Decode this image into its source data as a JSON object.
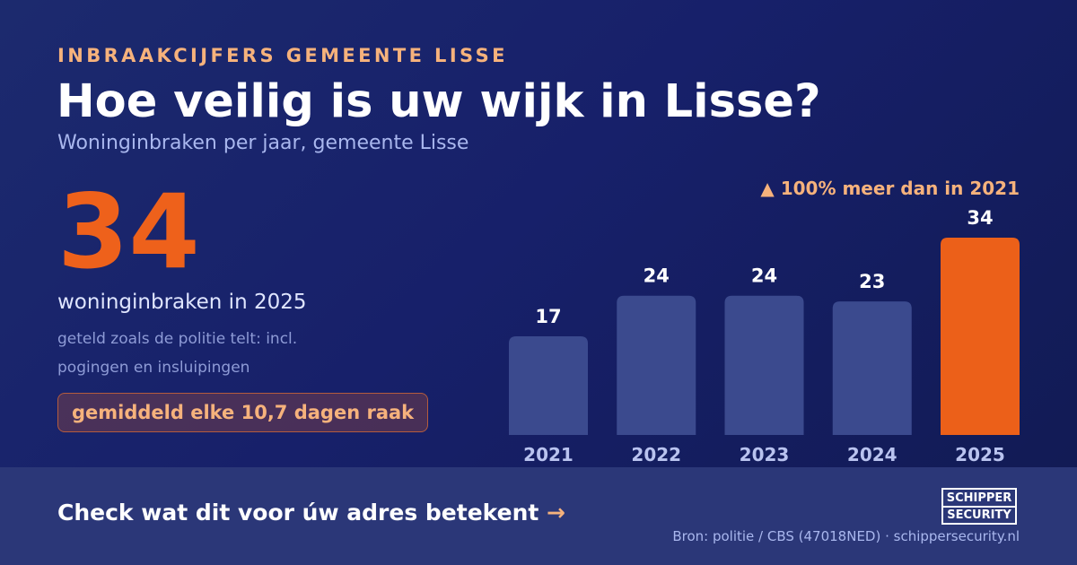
{
  "header": {
    "kicker": "INBRAAKCIJFERS GEMEENTE LISSE",
    "title": "Hoe veilig is uw wijk in Lisse?",
    "subtitle": "Woninginbraken per jaar, gemeente Lisse"
  },
  "highlight": {
    "number": "34",
    "label": "woninginbraken in 2025",
    "note": "geteld zoals de politie telt: incl. pogingen en insluipingen",
    "pill": "gemiddeld elke 10,7 dagen raak"
  },
  "chart_data": {
    "type": "bar",
    "categories": [
      "2021",
      "2022",
      "2023",
      "2024",
      "2025"
    ],
    "values": [
      17,
      24,
      24,
      23,
      34
    ],
    "highlight_index": 4,
    "annotation": "▲ 100% meer dan in 2021",
    "ylim": [
      0,
      34
    ],
    "grid": false,
    "colors": {
      "bar": "#3b4a8e",
      "highlight": "#ec6019",
      "label": "#ffffff",
      "tick": "#b9c3ef"
    }
  },
  "footer": {
    "cta": "Check wat dit voor úw adres betekent",
    "cta_arrow": "→",
    "logo_line1": "SCHIPPER",
    "logo_line2": "SECURITY",
    "source": "Bron: politie / CBS (47018NED) · schippersecurity.nl"
  },
  "colors": {
    "background": "#17206a",
    "accent": "#ee611b",
    "peach": "#f6b27c",
    "footer": "#2b3778"
  }
}
